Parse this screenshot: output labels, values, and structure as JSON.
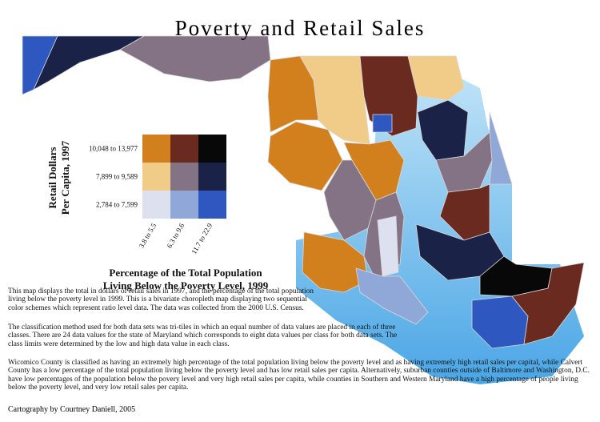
{
  "title": "Poverty and Retail Sales",
  "legend": {
    "y_title": [
      "Retail Dollars",
      "Per Capita, 1997"
    ],
    "y_classes": [
      "10,048 to 13,977",
      "7,899 to 9,589",
      "2,784 to 7,599"
    ],
    "x_classes": [
      "3.8 to 5.5",
      "6.3 to 9.6",
      "11.7 to 22.9"
    ],
    "x_title": [
      "Percentage of the Total Population",
      "Living Below the Poverty Level, 1999"
    ],
    "colors": [
      [
        "#d2801e",
        "#6b2a20",
        "#080808"
      ],
      [
        "#f0cc88",
        "#847384",
        "#1a2248"
      ],
      [
        "#dde0ef",
        "#8fa8d8",
        "#2e58c0"
      ]
    ]
  },
  "paragraphs": [
    "This map displays the total in dollars of retail sales in 1997, and the percentage of the total population living below the poverty level in 1999.  This is a bivariate choropleth map displaying two sequential color schemes which represent ratio level data.  The data was collected from the 2000 U.S. Census.",
    "The classification method used for both data sets was tri-tiles in which an equal number of data values are placed in each of three classes.  There are 24 data values for the state of Maryland which corresponds to eight data values per class for both data sets.  The class limits were determined by the low and high data value in each class.",
    "Wicomico County is classified as having an extremely high percentage of the total population living below the poverty level and as having extremely high retail sales per capital, while Calvert County has a low percentage of the total population living below the poverty level and has low retail sales per capita.  Alternatively, suburban counties outside of Baltimore and Washington, D.C. have low percentages of the population below the povery level and very high retail sales per capita, while counties in Southern and Western Maryland have a high percentage of people living below the poverty level, and very low retail sales per capita."
  ],
  "credit": "Cartography by Courtney Daniell, 2005"
}
